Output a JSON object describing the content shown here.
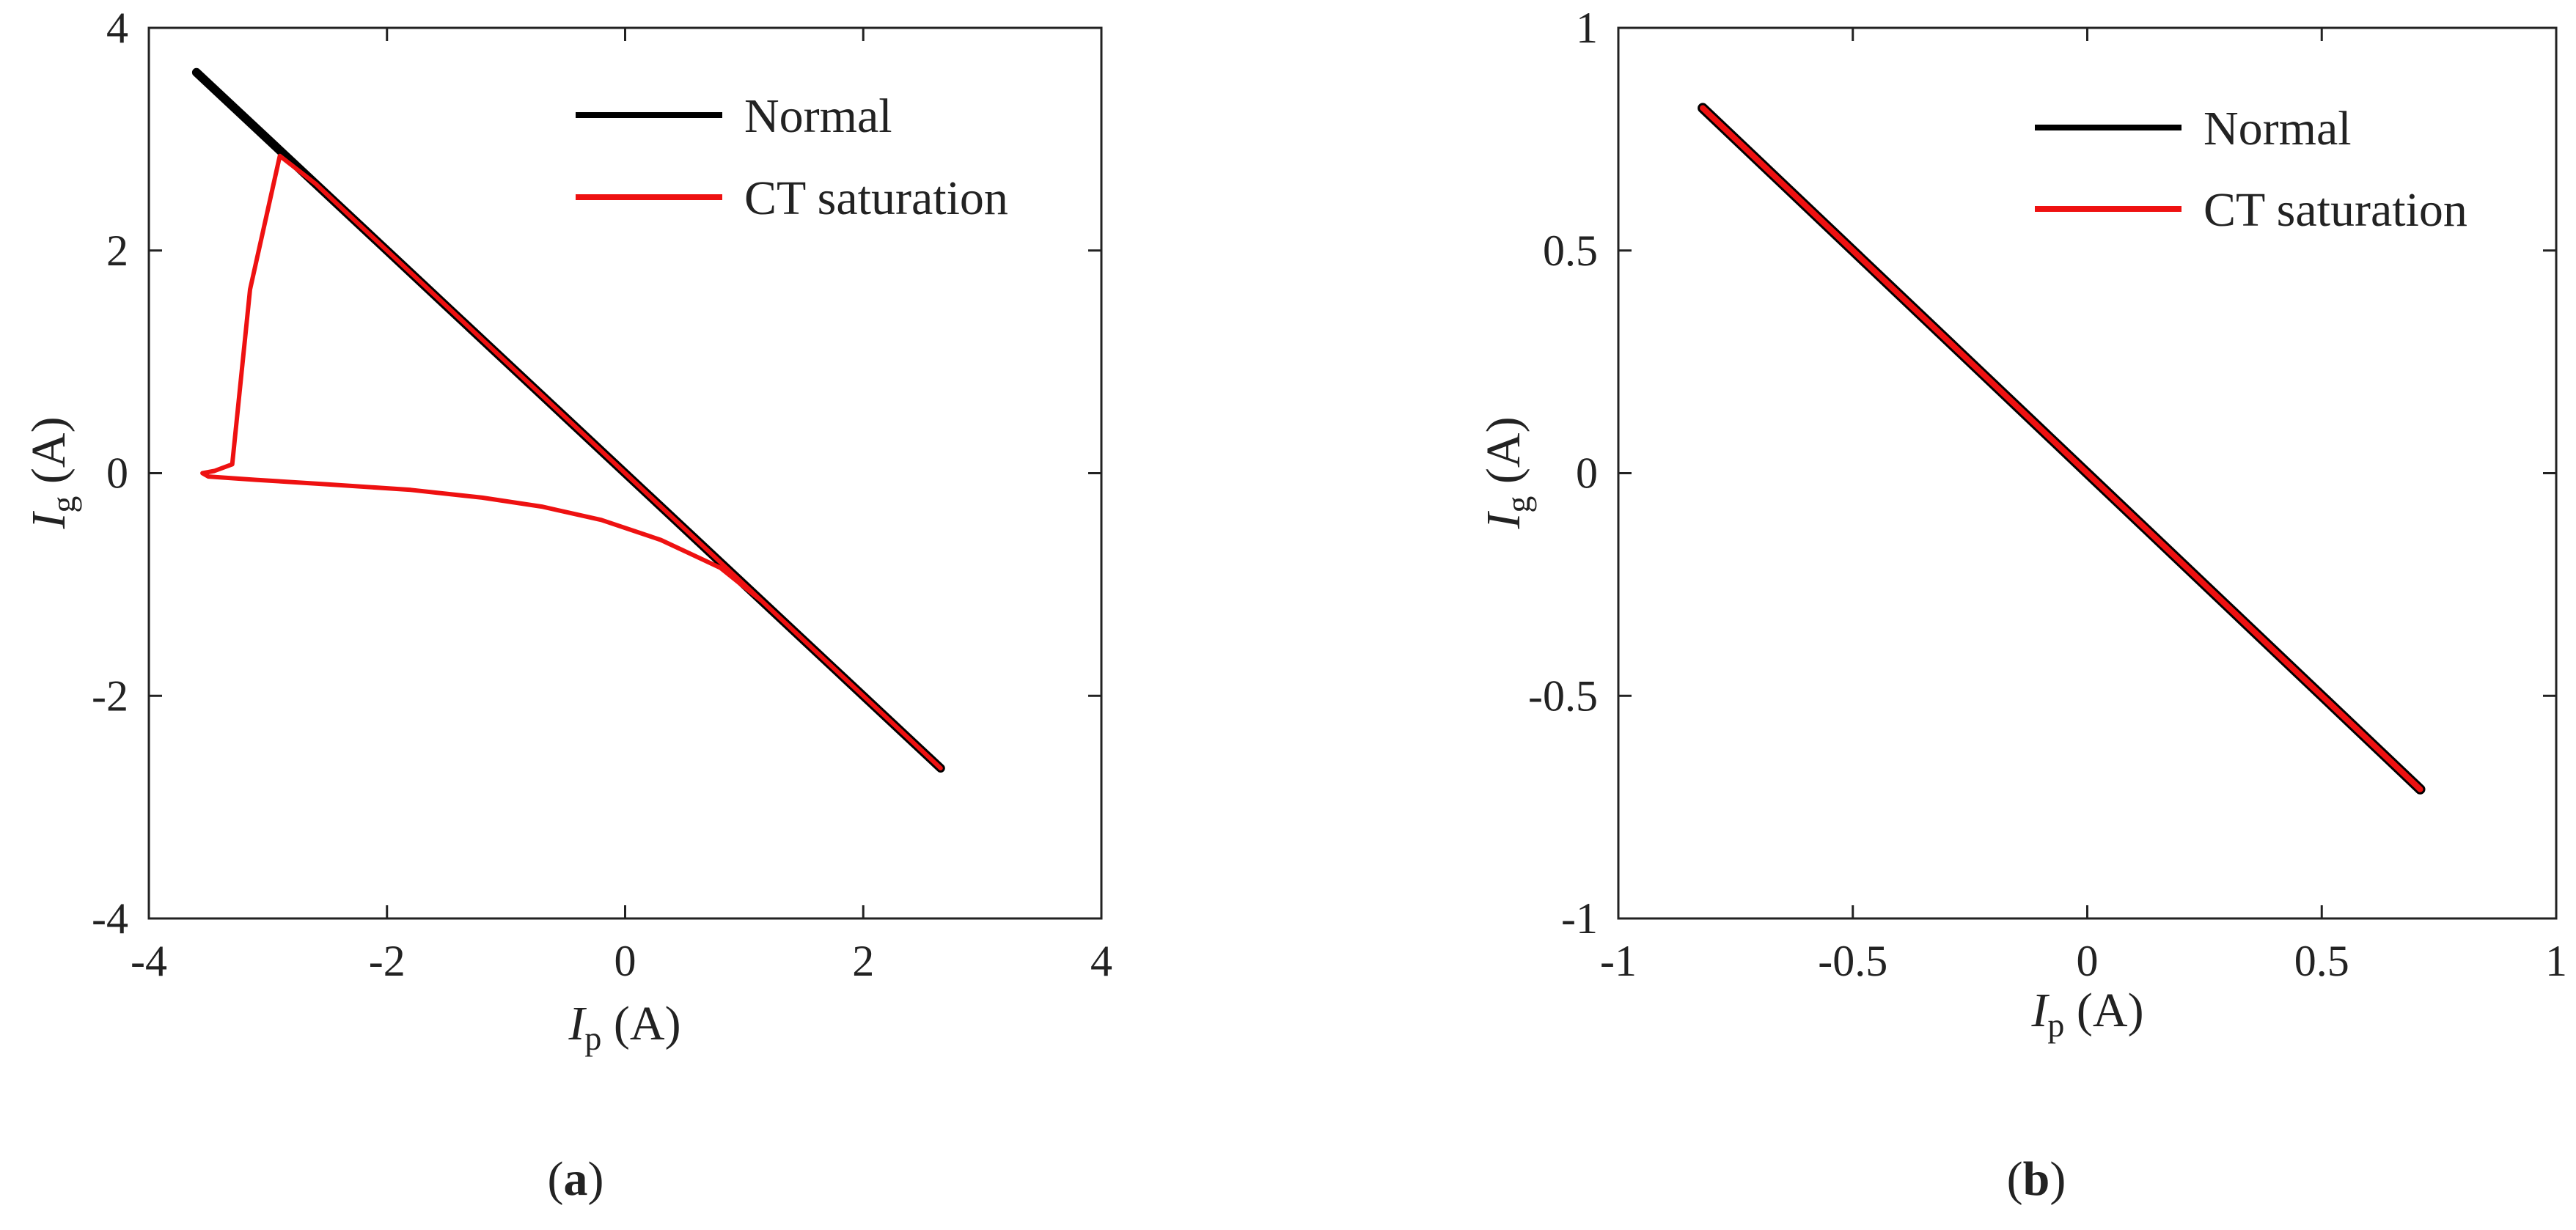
{
  "chart_data": [
    {
      "type": "line",
      "panel_label": "a",
      "xlabel": {
        "symbol": "I",
        "subscript": "p",
        "unit": " (A)"
      },
      "ylabel": {
        "symbol": "I",
        "subscript": "g",
        "unit": " (A)"
      },
      "xlim": [
        -4,
        4
      ],
      "ylim": [
        -4,
        4
      ],
      "xticks": [
        -4,
        -2,
        0,
        2,
        4
      ],
      "xtick_labels": [
        "-4",
        "-2",
        "0",
        "2",
        "4"
      ],
      "yticks": [
        -4,
        -2,
        0,
        2,
        4
      ],
      "ytick_labels": [
        "-4",
        "-2",
        "0",
        "2",
        "4"
      ],
      "legend_position": "top-right",
      "series": [
        {
          "name": "Normal",
          "color": "#000000",
          "x": [
            -3.6,
            -1.5,
            0.0,
            1.0,
            2.65
          ],
          "y": [
            3.6,
            1.5,
            0.0,
            -1.0,
            -2.65
          ]
        },
        {
          "name": "CT saturation",
          "color": "#ee1111",
          "x": [
            2.65,
            2.0,
            1.5,
            1.15,
            0.8,
            0.3,
            -0.2,
            -0.7,
            -1.2,
            -1.8,
            -2.5,
            -3.1,
            -3.5,
            -3.55,
            -3.45,
            -3.3,
            -3.15,
            -2.9,
            -2.6,
            -2.0,
            -1.0,
            0.0,
            1.0,
            2.0,
            2.65
          ],
          "y": [
            -2.65,
            -2.0,
            -1.5,
            -1.15,
            -0.85,
            -0.6,
            -0.42,
            -0.3,
            -0.22,
            -0.15,
            -0.1,
            -0.06,
            -0.03,
            0.0,
            0.02,
            0.08,
            1.65,
            2.85,
            2.6,
            2.0,
            1.0,
            0.0,
            -1.0,
            -2.0,
            -2.65
          ]
        }
      ]
    },
    {
      "type": "line",
      "panel_label": "b",
      "xlabel": {
        "symbol": "I",
        "subscript": "p",
        "unit": " (A)"
      },
      "ylabel": {
        "symbol": "I",
        "subscript": "g",
        "unit": " (A)"
      },
      "xlim": [
        -1,
        1
      ],
      "ylim": [
        -1,
        1
      ],
      "xticks": [
        -1,
        -0.5,
        0,
        0.5,
        1
      ],
      "xtick_labels": [
        "-1",
        "-0.5",
        "0",
        "0.5",
        "1"
      ],
      "yticks": [
        -1,
        -0.5,
        0,
        0.5,
        1
      ],
      "ytick_labels": [
        "-1",
        "-0.5",
        "0",
        "0.5",
        "1"
      ],
      "legend_position": "top-right",
      "series": [
        {
          "name": "Normal",
          "color": "#000000",
          "x": [
            -0.82,
            0.0,
            0.71
          ],
          "y": [
            0.82,
            0.0,
            -0.71
          ]
        },
        {
          "name": "CT saturation",
          "color": "#ee1111",
          "x": [
            -0.82,
            0.0,
            0.71
          ],
          "y": [
            0.82,
            0.0,
            -0.71
          ]
        }
      ]
    }
  ]
}
